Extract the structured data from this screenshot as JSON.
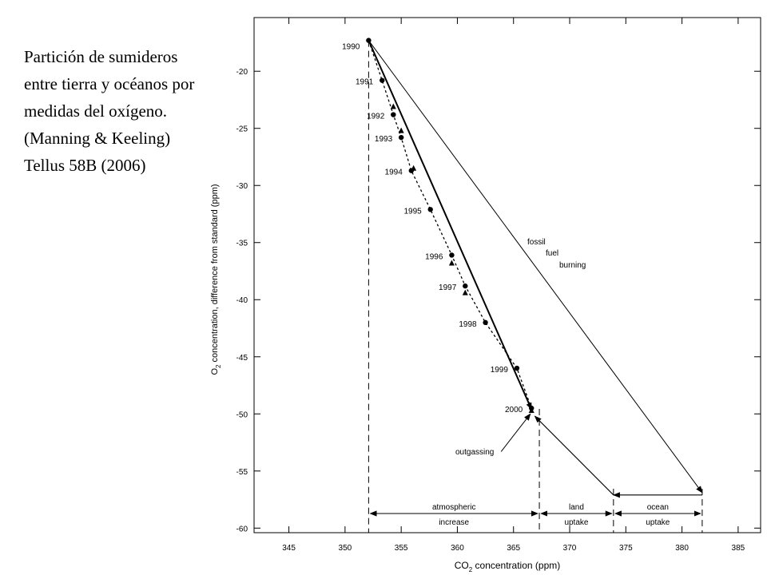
{
  "chart_data": {
    "type": "scatter",
    "note_lines": [
      "Partición de sumideros",
      "entre tierra y océanos por",
      "medidas del oxígeno.",
      "(Manning  & Keeling)",
      "Tellus 58B (2006)"
    ],
    "xlabel": {
      "main": "CO",
      "sub": "2",
      "rest": " concentration (ppm)"
    },
    "ylabel": {
      "main": "O",
      "sub": "2",
      "rest": " concentration, difference from standard (ppm)"
    },
    "xlim": [
      341.9,
      387
    ],
    "xticks": [
      345,
      350,
      355,
      360,
      365,
      370,
      375,
      380,
      385
    ],
    "ylim": [
      -60.4,
      -15.3
    ],
    "yticks": [
      -20,
      -25,
      -30,
      -35,
      -40,
      -45,
      -50,
      -55,
      -60
    ],
    "color": "#000000",
    "series": [
      {
        "marker": "circle",
        "line": "dotted",
        "x": [
          352.1,
          353.3,
          354.3,
          355.0,
          355.9,
          357.6,
          359.5,
          360.7,
          362.5,
          365.3,
          366.6
        ],
        "y": [
          -17.3,
          -20.8,
          -23.8,
          -25.8,
          -28.7,
          -32.1,
          -36.1,
          -38.8,
          -42.0,
          -46.0,
          -49.5
        ],
        "labels": [
          "1990",
          "1991",
          "1992",
          "1993",
          "1994",
          "1995",
          "1996",
          "1997",
          "1998",
          "1999",
          "2000"
        ]
      },
      {
        "marker": "triangle",
        "line": "none",
        "x": [
          354.3,
          355.0,
          356.1,
          359.5,
          360.7,
          366.6
        ],
        "y": [
          -23.1,
          -25.2,
          -28.5,
          -36.8,
          -39.4,
          -49.7
        ]
      }
    ],
    "arrows": [
      {
        "x": [
          352.1,
          381.8
        ],
        "y": [
          -17.3,
          -56.9
        ],
        "width": 1
      },
      {
        "x": [
          352.1,
          366.6
        ],
        "y": [
          -17.3,
          -49.6
        ],
        "width": 2
      },
      {
        "x": [
          381.8,
          373.9
        ],
        "y": [
          -57.1,
          -57.1
        ],
        "width": 1.2
      },
      {
        "x": [
          373.9,
          366.9
        ],
        "y": [
          -57.1,
          -50.2
        ],
        "width": 1.2
      },
      {
        "x": [
          363.9,
          366.5
        ],
        "y": [
          -53.3,
          -50.0
        ],
        "width": 1
      }
    ],
    "annotations": [
      "fossil",
      "fuel",
      "burning",
      "outgassing"
    ],
    "segments": [
      {
        "x": [
          352.1,
          367.3
        ],
        "label": [
          "atmospheric",
          "increase"
        ]
      },
      {
        "x": [
          367.3,
          373.9
        ],
        "label": [
          "land",
          "uptake"
        ]
      },
      {
        "x": [
          373.9,
          381.8
        ],
        "label": [
          "ocean",
          "uptake"
        ]
      }
    ]
  }
}
